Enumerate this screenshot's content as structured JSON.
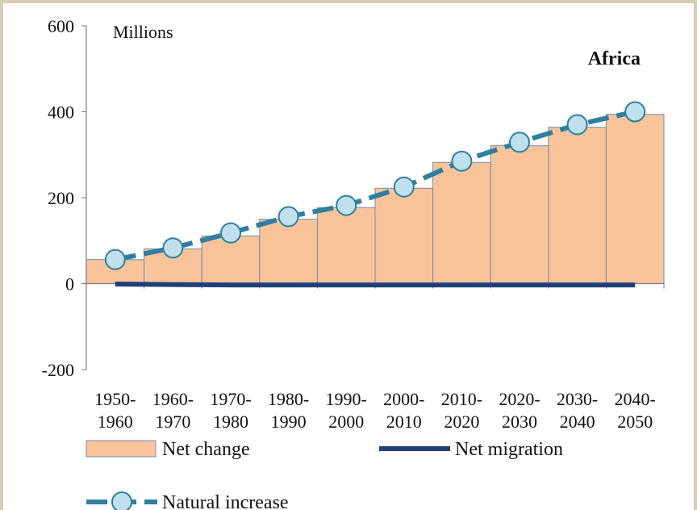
{
  "chart_data": {
    "type": "bar_line",
    "unit_label": "Millions",
    "annotation": "Africa",
    "categories": [
      "1950-1960",
      "1960-1970",
      "1970-1980",
      "1980-1990",
      "1990-2000",
      "2000-2010",
      "2010-2020",
      "2020-2030",
      "2030-2040",
      "2040-2050"
    ],
    "series": [
      {
        "name": "Net change",
        "type": "bar",
        "color": "#f9c49a",
        "values": [
          56,
          81,
          111,
          150,
          177,
          222,
          282,
          321,
          364,
          394
        ]
      },
      {
        "name": "Net migration",
        "type": "line",
        "color": "#1f3f7a",
        "values": [
          -1,
          -2,
          -3,
          -3,
          -3,
          -3,
          -3,
          -3,
          -3,
          -3
        ]
      },
      {
        "name": "Natural increase",
        "type": "line_marker",
        "color": "#2e7fa0",
        "marker_color": "#bfe0ec",
        "values": [
          56,
          83,
          118,
          156,
          182,
          225,
          285,
          329,
          370,
          400
        ]
      }
    ],
    "ylim": [
      -200,
      600
    ],
    "yticks": [
      -200,
      0,
      200,
      400,
      600
    ]
  }
}
